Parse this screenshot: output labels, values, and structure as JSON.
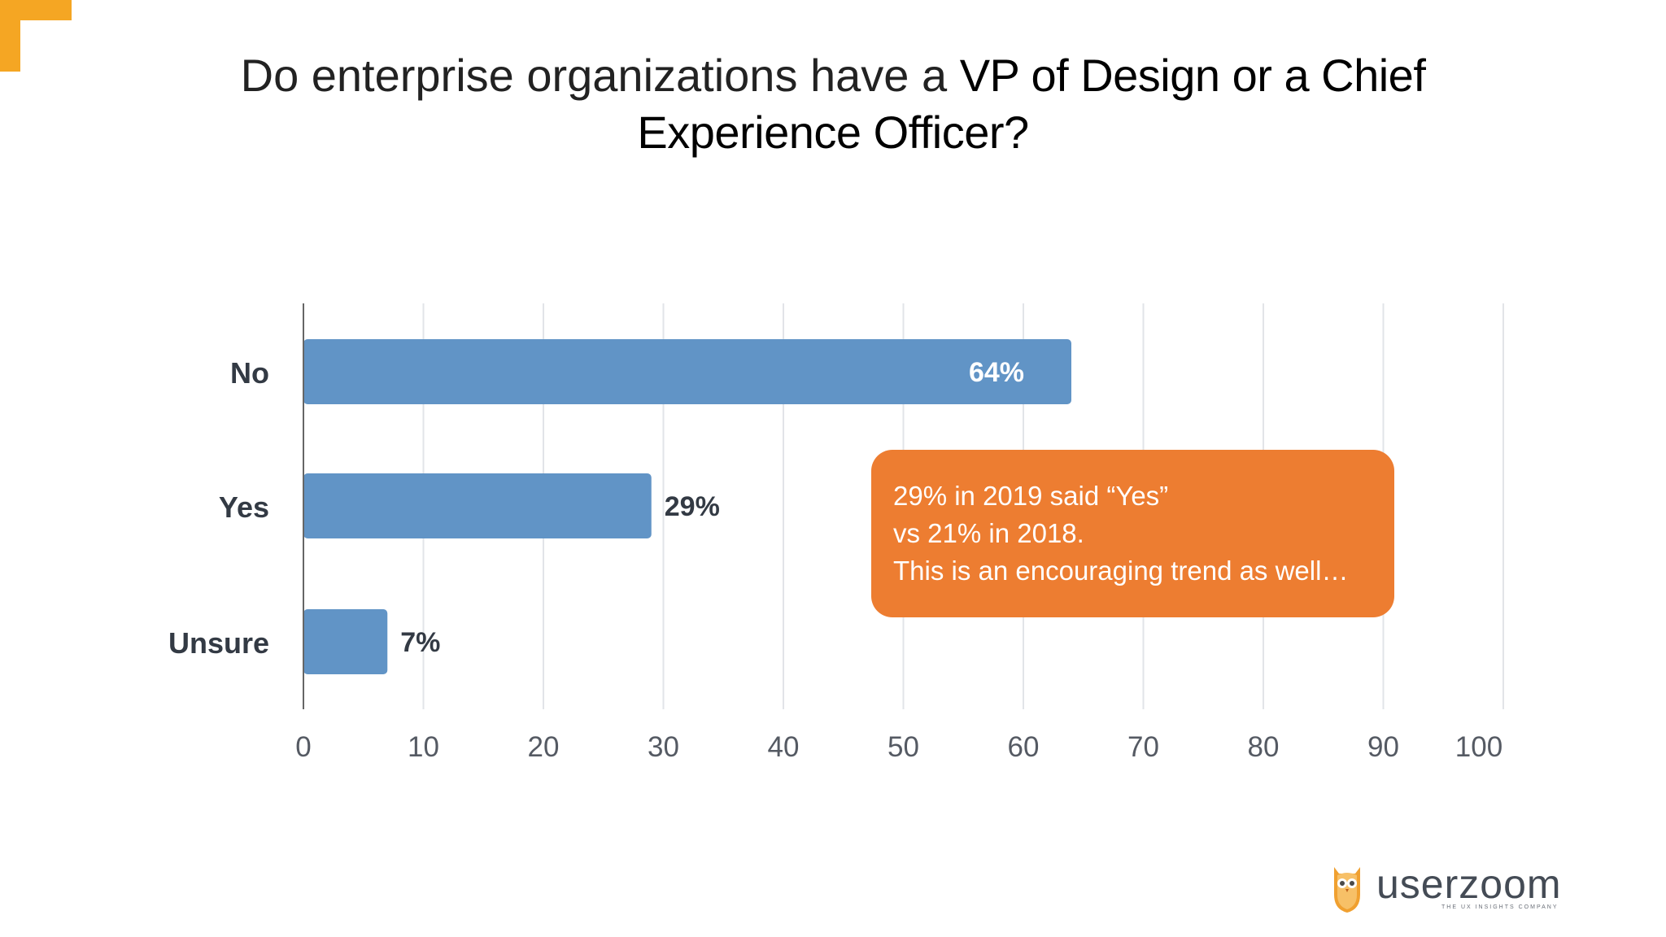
{
  "title": {
    "part1": "Do enterprise organizations have a ",
    "part2": "VP of Design or a Chief Experience Officer?"
  },
  "chart_data": {
    "type": "bar",
    "orientation": "horizontal",
    "categories": [
      "No",
      "Yes",
      "Unsure"
    ],
    "values": [
      64,
      29,
      7
    ],
    "data_labels": [
      "64%",
      "29%",
      "7%"
    ],
    "xlim": [
      0,
      100
    ],
    "x_ticks": [
      "0",
      "10",
      "20",
      "30",
      "40",
      "50",
      "60",
      "70",
      "80",
      "90",
      "100"
    ],
    "grid": true,
    "bar_color": "#6194c6"
  },
  "callout": {
    "line1": "29% in 2019 said “Yes”",
    "line2": "vs 21% in 2018.",
    "line3": "This is an encouraging trend as well…",
    "color": "#ed7d31"
  },
  "logo": {
    "wordmark": "userzoom",
    "tagline": "THE UX INSIGHTS COMPANY",
    "icon": "owl-icon"
  },
  "accent_color": "#f5a623"
}
